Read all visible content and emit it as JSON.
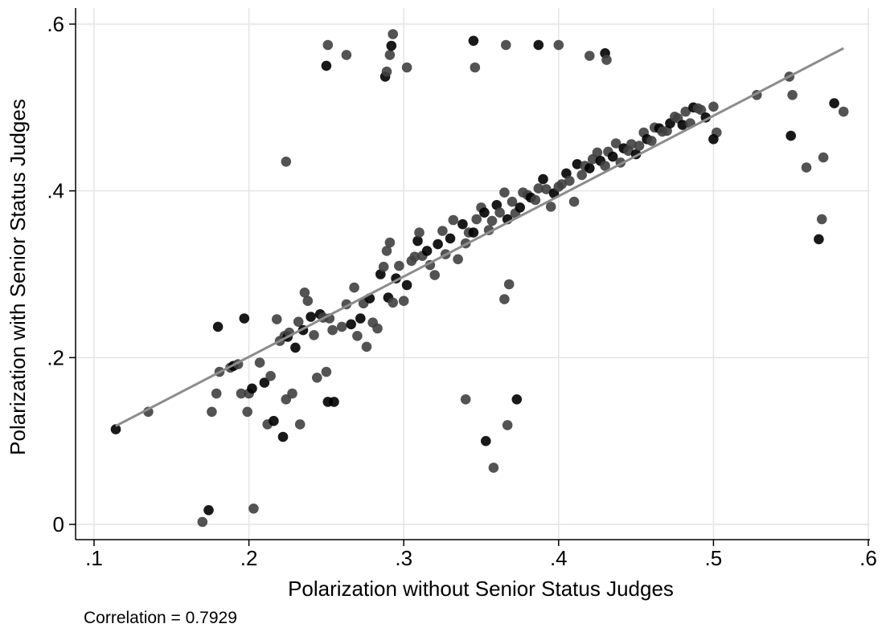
{
  "chart_data": {
    "type": "scatter",
    "title": "",
    "xlabel": "Polarization without Senior Status Judges",
    "ylabel": "Polarization with Senior Status Judges",
    "xlim": [
      0.1,
      0.6
    ],
    "ylim": [
      0,
      0.6
    ],
    "xticks": [
      0.1,
      0.2,
      0.3,
      0.4,
      0.5,
      0.6
    ],
    "xtick_labels": [
      ".1",
      ".2",
      ".3",
      ".4",
      ".5",
      ".6"
    ],
    "yticks": [
      0,
      0.2,
      0.4,
      0.6
    ],
    "ytick_labels": [
      "0",
      ".2",
      ".4",
      ".6"
    ],
    "grid": true,
    "fit_line": {
      "x": [
        0.114,
        0.584
      ],
      "y": [
        0.118,
        0.571
      ],
      "color": "#8c8c8c"
    },
    "point_colors": [
      "#000000",
      "#404040"
    ],
    "series": [
      {
        "x": [
          0.114,
          0.135,
          0.17,
          0.174,
          0.176,
          0.179,
          0.18,
          0.181,
          0.188,
          0.19,
          0.193,
          0.195,
          0.197,
          0.199,
          0.2,
          0.202,
          0.203,
          0.207,
          0.21,
          0.212,
          0.214,
          0.216,
          0.218,
          0.22,
          0.222,
          0.223,
          0.224,
          0.225,
          0.226,
          0.228,
          0.23,
          0.232,
          0.233,
          0.235,
          0.236,
          0.238,
          0.24,
          0.242,
          0.244,
          0.246,
          0.248,
          0.25,
          0.251,
          0.252,
          0.254,
          0.255,
          0.26,
          0.263,
          0.266,
          0.268,
          0.27,
          0.272,
          0.274,
          0.276,
          0.278,
          0.28,
          0.283,
          0.285,
          0.287,
          0.289,
          0.29,
          0.291,
          0.293,
          0.295,
          0.297,
          0.3,
          0.302,
          0.305,
          0.307,
          0.309,
          0.31,
          0.312,
          0.315,
          0.317,
          0.32,
          0.322,
          0.325,
          0.327,
          0.33,
          0.332,
          0.335,
          0.338,
          0.34,
          0.342,
          0.345,
          0.347,
          0.35,
          0.352,
          0.355,
          0.357,
          0.36,
          0.362,
          0.365,
          0.367,
          0.37,
          0.372,
          0.375,
          0.377,
          0.38,
          0.382,
          0.385,
          0.387,
          0.39,
          0.392,
          0.395,
          0.397,
          0.4,
          0.402,
          0.405,
          0.407,
          0.41,
          0.412,
          0.415,
          0.417,
          0.42,
          0.422,
          0.425,
          0.427,
          0.43,
          0.432,
          0.435,
          0.437,
          0.44,
          0.442,
          0.445,
          0.447,
          0.45,
          0.452,
          0.455,
          0.457,
          0.46,
          0.462,
          0.465,
          0.467,
          0.47,
          0.472,
          0.475,
          0.477,
          0.48,
          0.482,
          0.485,
          0.487,
          0.49,
          0.492,
          0.495,
          0.5,
          0.502,
          0.25,
          0.251,
          0.263,
          0.288,
          0.289,
          0.291,
          0.292,
          0.293,
          0.302,
          0.345,
          0.346,
          0.366,
          0.387,
          0.4,
          0.42,
          0.43,
          0.431,
          0.224,
          0.55,
          0.551,
          0.56,
          0.568,
          0.57,
          0.571,
          0.578,
          0.584,
          0.34,
          0.353,
          0.358,
          0.367,
          0.373,
          0.365,
          0.368,
          0.5,
          0.528,
          0.549
        ],
        "y": [
          0.114,
          0.135,
          0.003,
          0.017,
          0.135,
          0.157,
          0.237,
          0.183,
          0.188,
          0.19,
          0.192,
          0.157,
          0.247,
          0.135,
          0.157,
          0.163,
          0.019,
          0.194,
          0.17,
          0.12,
          0.178,
          0.124,
          0.246,
          0.22,
          0.105,
          0.226,
          0.15,
          0.225,
          0.23,
          0.157,
          0.212,
          0.243,
          0.12,
          0.233,
          0.278,
          0.268,
          0.249,
          0.227,
          0.176,
          0.252,
          0.248,
          0.183,
          0.147,
          0.247,
          0.233,
          0.147,
          0.237,
          0.264,
          0.24,
          0.284,
          0.226,
          0.247,
          0.265,
          0.213,
          0.271,
          0.242,
          0.235,
          0.3,
          0.309,
          0.328,
          0.272,
          0.338,
          0.266,
          0.295,
          0.31,
          0.268,
          0.287,
          0.316,
          0.321,
          0.34,
          0.35,
          0.322,
          0.328,
          0.311,
          0.299,
          0.336,
          0.352,
          0.324,
          0.343,
          0.365,
          0.318,
          0.36,
          0.337,
          0.35,
          0.35,
          0.366,
          0.38,
          0.374,
          0.353,
          0.364,
          0.383,
          0.374,
          0.398,
          0.366,
          0.387,
          0.373,
          0.38,
          0.398,
          0.395,
          0.392,
          0.389,
          0.403,
          0.414,
          0.402,
          0.381,
          0.397,
          0.405,
          0.408,
          0.421,
          0.412,
          0.387,
          0.432,
          0.419,
          0.43,
          0.427,
          0.438,
          0.446,
          0.436,
          0.43,
          0.447,
          0.441,
          0.457,
          0.434,
          0.451,
          0.448,
          0.456,
          0.444,
          0.454,
          0.47,
          0.462,
          0.46,
          0.476,
          0.475,
          0.471,
          0.472,
          0.481,
          0.489,
          0.487,
          0.479,
          0.495,
          0.481,
          0.5,
          0.499,
          0.497,
          0.488,
          0.501,
          0.47,
          0.55,
          0.575,
          0.563,
          0.537,
          0.543,
          0.563,
          0.574,
          0.588,
          0.548,
          0.58,
          0.548,
          0.575,
          0.575,
          0.575,
          0.562,
          0.565,
          0.557,
          0.435,
          0.466,
          0.515,
          0.428,
          0.342,
          0.366,
          0.44,
          0.505,
          0.495,
          0.15,
          0.1,
          0.068,
          0.119,
          0.15,
          0.27,
          0.288,
          0.462,
          0.515,
          0.537
        ]
      }
    ],
    "annotation": "Correlation = 0.7929"
  }
}
